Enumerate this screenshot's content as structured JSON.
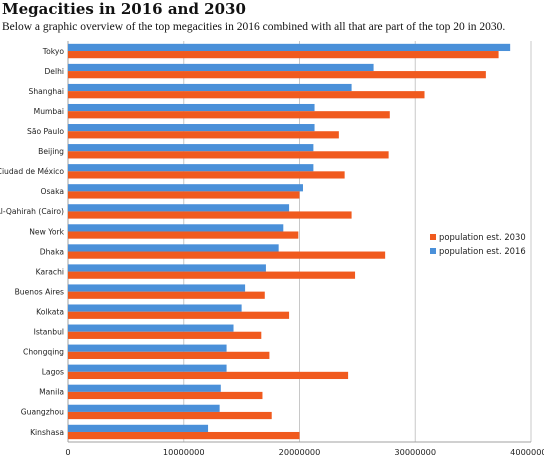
{
  "header": {
    "title": "Megacities in 2016 and 2030",
    "subtitle": "Below a graphic overview of the top megacities in 2016 combined with all that are part of the top 20 in 2030."
  },
  "chart_data": {
    "type": "bar",
    "orientation": "horizontal",
    "categories": [
      "Tokyo",
      "Delhi",
      "Shanghai",
      "Mumbai",
      "São Paulo",
      "Beijing",
      "Ciudad de México",
      "Osaka",
      "Al-Qahirah (Cairo)",
      "New York",
      "Dhaka",
      "Karachi",
      "Buenos Aires",
      "Kolkata",
      "Istanbul",
      "Chongqing",
      "Lagos",
      "Manila",
      "Guangzhou",
      "Kinshasa"
    ],
    "series": [
      {
        "name": "population est. 2016",
        "color": "#4a90d9",
        "values": [
          38200000,
          26400000,
          24500000,
          21300000,
          21300000,
          21200000,
          21200000,
          20300000,
          19100000,
          18600000,
          18200000,
          17100000,
          15300000,
          15000000,
          14300000,
          13700000,
          13700000,
          13200000,
          13100000,
          12100000
        ]
      },
      {
        "name": "population est. 2030",
        "color": "#f05a1e",
        "values": [
          37200000,
          36100000,
          30800000,
          27800000,
          23400000,
          27700000,
          23900000,
          20000000,
          24500000,
          19900000,
          27400000,
          24800000,
          17000000,
          19100000,
          16700000,
          17400000,
          24200000,
          16800000,
          17600000,
          20000000
        ]
      }
    ],
    "xlim": [
      0,
      40000000
    ],
    "xticks": [
      "0",
      "10000000",
      "20000000",
      "30000000",
      "40000000"
    ],
    "grid": true,
    "legend_position": "right",
    "legend_order": [
      "population est. 2030",
      "population est. 2016"
    ]
  }
}
